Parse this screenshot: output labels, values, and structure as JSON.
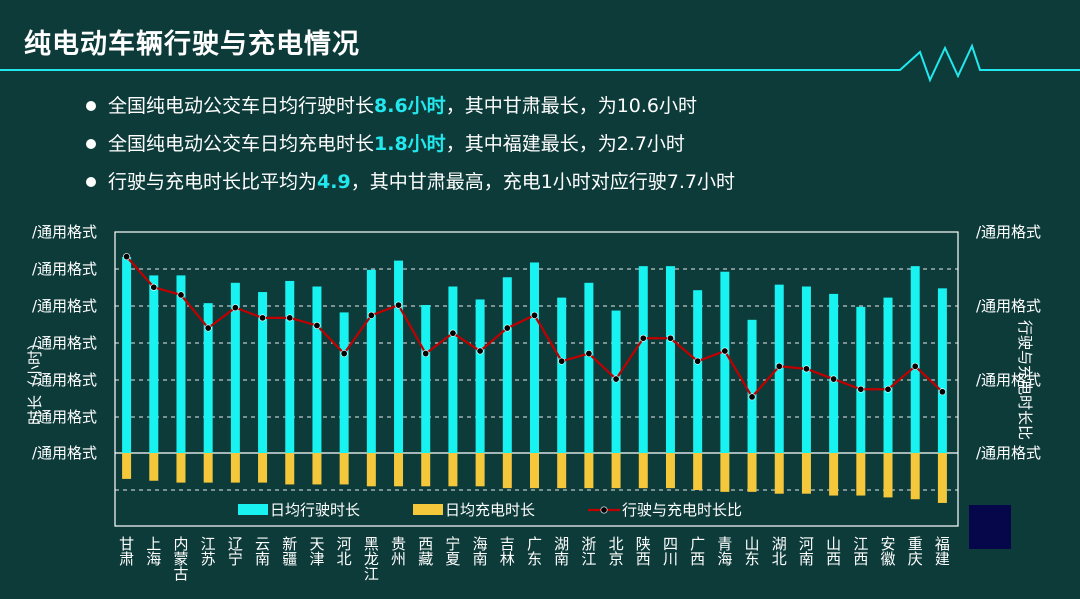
{
  "page": {
    "title": "纯电动车辆行驶与充电情况"
  },
  "bullets": [
    {
      "before": "全国纯电动公交车日均行驶时长",
      "highlight": "8.6小时",
      "after": "，其中甘肃最长，为10.6小时"
    },
    {
      "before": "全国纯电动公交车日均充电时长",
      "highlight": "1.8小时",
      "after": "，其中福建最长，为2.7小时"
    },
    {
      "before": "行驶与充电时长比平均为",
      "highlight": "4.9",
      "after": "，其中甘肃最高，充电1小时对应行驶7.7小时"
    }
  ],
  "colors": {
    "bar_drive": "#18f2f0",
    "bar_charge": "#f5c83c",
    "line": "#c00000",
    "accent": "#22e8ee"
  },
  "chart_data": {
    "type": "bar",
    "categories": [
      "甘肃",
      "上海",
      "内蒙古",
      "江苏",
      "辽宁",
      "云南",
      "新疆",
      "天津",
      "河北",
      "黑龙江",
      "贵州",
      "西藏",
      "宁夏",
      "海南",
      "吉林",
      "广东",
      "湖南",
      "浙江",
      "北京",
      "陕西",
      "四川",
      "广西",
      "青海",
      "山东",
      "湖北",
      "河南",
      "山西",
      "江西",
      "安徽",
      "重庆",
      "福建"
    ],
    "series": [
      {
        "name": "日均行驶时长",
        "type": "bar",
        "axis": "left",
        "values": [
          10.6,
          9.6,
          9.6,
          8.1,
          9.2,
          8.7,
          9.3,
          9.0,
          7.6,
          9.9,
          10.4,
          8.0,
          9.0,
          8.3,
          9.5,
          10.3,
          8.4,
          9.2,
          7.7,
          10.1,
          10.1,
          8.8,
          9.8,
          7.2,
          9.1,
          9.0,
          8.6,
          7.9,
          8.4,
          10.1,
          8.9
        ]
      },
      {
        "name": "日均充电时长",
        "type": "bar",
        "axis": "left",
        "values": [
          1.4,
          1.5,
          1.6,
          1.6,
          1.6,
          1.6,
          1.7,
          1.7,
          1.7,
          1.8,
          1.8,
          1.8,
          1.8,
          1.8,
          1.9,
          1.9,
          1.9,
          1.9,
          1.9,
          1.9,
          1.9,
          2.0,
          2.1,
          2.1,
          2.2,
          2.2,
          2.3,
          2.3,
          2.4,
          2.5,
          2.7
        ]
      },
      {
        "name": "行驶与充电时长比",
        "type": "line",
        "axis": "right",
        "values": [
          7.7,
          6.5,
          6.2,
          4.9,
          5.7,
          5.3,
          5.3,
          5.0,
          3.9,
          5.4,
          5.8,
          3.9,
          4.7,
          4.0,
          4.9,
          5.4,
          3.6,
          3.9,
          2.9,
          4.5,
          4.5,
          3.6,
          4.0,
          2.2,
          3.4,
          3.3,
          2.9,
          2.5,
          2.5,
          3.4,
          2.4
        ]
      }
    ],
    "left_axis_ticks": [
      "/通用格式",
      "/通用格式",
      "/通用格式",
      "/通用格式",
      "/通用格式",
      "/通用格式",
      "/通用格式"
    ],
    "right_axis_ticks": [
      "/通用格式",
      "/通用格式",
      "/通用格式",
      "/通用格式"
    ],
    "ylabel_left": "时长（小时）",
    "ylabel_right": "行驶与充电时长比",
    "grid": true,
    "legend_position": "bottom"
  }
}
